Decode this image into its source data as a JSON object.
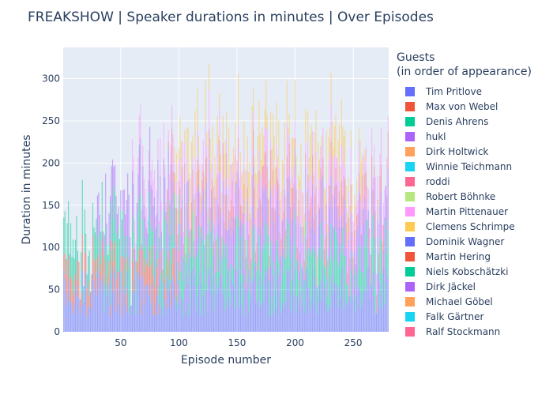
{
  "chart_data": {
    "type": "bar",
    "barmode": "stack",
    "title": "FREAKSHOW | Speaker durations in minutes | Over Episodes",
    "xlabel": "Episode number",
    "ylabel": "Duration in minutes",
    "xlim": [
      0.5,
      280.5
    ],
    "ylim": [
      0,
      337
    ],
    "xticks": [
      50,
      100,
      150,
      200,
      250
    ],
    "yticks": [
      0,
      50,
      100,
      150,
      200,
      250,
      300
    ],
    "grid": true,
    "legend": {
      "title_line1": "Guests",
      "title_line2": "(in order of appearance)",
      "placement": "right"
    },
    "background": "#E5ECF6",
    "series": [
      {
        "name": "Tim Pritlove",
        "color": "#636EFA",
        "typical": 50,
        "from": 1,
        "to": 280
      },
      {
        "name": "Max von Webel",
        "color": "#EF553B",
        "typical": 30,
        "from": 1,
        "to": 100
      },
      {
        "name": "Denis Ahrens",
        "color": "#00CC96",
        "typical": 45,
        "from": 1,
        "to": 280
      },
      {
        "name": "hukl",
        "color": "#AB63FA",
        "typical": 50,
        "from": 30,
        "to": 280
      },
      {
        "name": "Dirk Holtwick",
        "color": "#FFA15A",
        "typical": 0,
        "from": 0,
        "to": 0
      },
      {
        "name": "Winnie Teichmann",
        "color": "#19D3F3",
        "typical": 0,
        "from": 0,
        "to": 0
      },
      {
        "name": "roddi",
        "color": "#FF6692",
        "typical": 30,
        "from": 90,
        "to": 280
      },
      {
        "name": "Robert Böhnke",
        "color": "#B6E880",
        "typical": 0,
        "from": 0,
        "to": 0
      },
      {
        "name": "Martin Pittenauer",
        "color": "#FF97FF",
        "typical": 30,
        "from": 60,
        "to": 280
      },
      {
        "name": "Clemens Schrimpe",
        "color": "#FECB52",
        "typical": 40,
        "from": 95,
        "to": 260
      },
      {
        "name": "Dominik Wagner",
        "color": "#636EFA",
        "typical": 0,
        "from": 0,
        "to": 0
      },
      {
        "name": "Martin Hering",
        "color": "#EF553B",
        "typical": 0,
        "from": 0,
        "to": 0
      },
      {
        "name": "Niels Kobschätzki",
        "color": "#00CC96",
        "typical": 0,
        "from": 0,
        "to": 0
      },
      {
        "name": "Dirk Jäckel",
        "color": "#AB63FA",
        "typical": 0,
        "from": 0,
        "to": 0
      },
      {
        "name": "Michael Göbel",
        "color": "#FFA15A",
        "typical": 0,
        "from": 0,
        "to": 0
      },
      {
        "name": "Falk Gärtner",
        "color": "#19D3F3",
        "typical": 0,
        "from": 0,
        "to": 0
      },
      {
        "name": "Ralf Stockmann",
        "color": "#FF6692",
        "typical": 0,
        "from": 0,
        "to": 0
      }
    ]
  }
}
